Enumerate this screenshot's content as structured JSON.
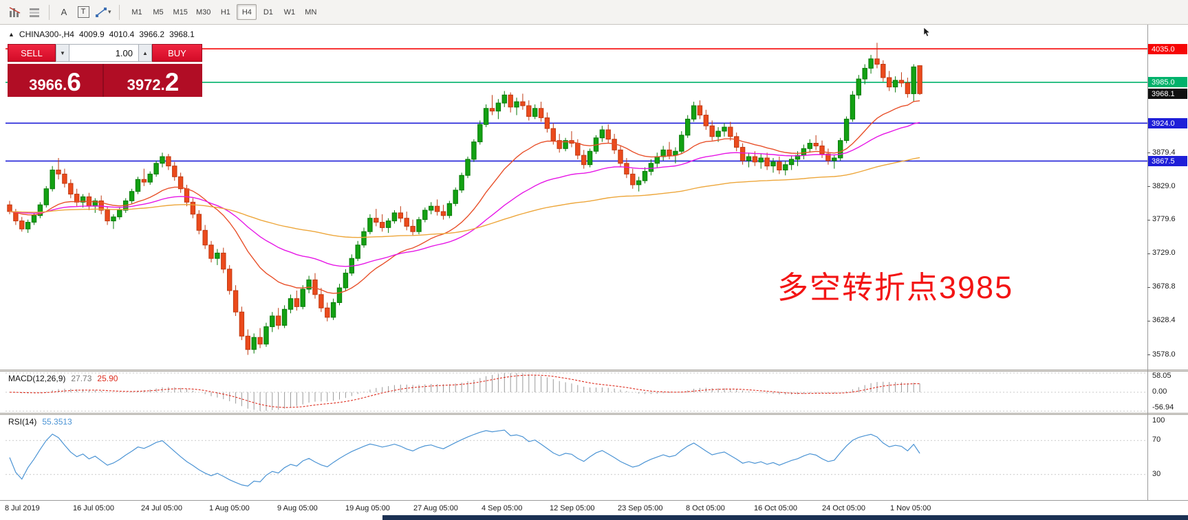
{
  "toolbar": {
    "letter_a": "A",
    "letter_t": "T",
    "timeframes": [
      {
        "label": "M1",
        "active": false
      },
      {
        "label": "M5",
        "active": false
      },
      {
        "label": "M15",
        "active": false
      },
      {
        "label": "M30",
        "active": false
      },
      {
        "label": "H1",
        "active": false
      },
      {
        "label": "H4",
        "active": true
      },
      {
        "label": "D1",
        "active": false
      },
      {
        "label": "W1",
        "active": false
      },
      {
        "label": "MN",
        "active": false
      }
    ]
  },
  "icons": {
    "dropdown": "▾",
    "spin_up": "▲",
    "spin_down": "▼",
    "collapse": "▲"
  },
  "chart_header": {
    "symbol": "CHINA300-,H4",
    "open": "4009.9",
    "high": "4010.4",
    "low": "3966.2",
    "close": "3968.1"
  },
  "trade_panel": {
    "sell_label": "SELL",
    "buy_label": "BUY",
    "volume": "1.00",
    "bid": "3966.6",
    "ask": "3972.2"
  },
  "annotation": {
    "text": "多空转折点3985",
    "color": "#f31414"
  },
  "price_axis": {
    "labels": [
      {
        "text": "3879.4",
        "price": 3879.4
      },
      {
        "text": "3829.0",
        "price": 3829.0
      },
      {
        "text": "3779.6",
        "price": 3779.6
      },
      {
        "text": "3729.0",
        "price": 3729.0
      },
      {
        "text": "3678.8",
        "price": 3678.8
      },
      {
        "text": "3628.4",
        "price": 3628.4
      },
      {
        "text": "3578.0",
        "price": 3578.0
      }
    ],
    "boxes": [
      {
        "text": "4035.0",
        "price": 4035.0,
        "bg": "#f60606",
        "name": "resistance-price-box"
      },
      {
        "text": "3985.0",
        "price": 3985.0,
        "bg": "#00b26b",
        "name": "pivot-price-box"
      },
      {
        "text": "3924.0",
        "price": 3924.0,
        "bg": "#1f1fd8",
        "name": "support1-price-box"
      },
      {
        "text": "3867.5",
        "price": 3867.5,
        "bg": "#1f1fd8",
        "name": "support2-price-box"
      },
      {
        "text": "3968.1",
        "price": 3968.1,
        "bg": "#101010",
        "name": "current-price-box"
      }
    ]
  },
  "macd": {
    "label": "MACD(12,26,9)",
    "value_hist": "27.73",
    "value_signal": "25.90",
    "axis": [
      {
        "text": "58.05",
        "level": 58.05
      },
      {
        "text": "0.00",
        "level": 0
      },
      {
        "text": "-56.94",
        "level": -56.94
      }
    ],
    "level_lines": [
      58.05,
      0,
      -56.94
    ],
    "params": {
      "fast": 12,
      "slow": 26,
      "signal": 9
    }
  },
  "rsi": {
    "label": "RSI(14)",
    "value": "55.3513",
    "period": 14,
    "axis": [
      {
        "text": "100",
        "level": 100
      },
      {
        "text": "70",
        "level": 70
      },
      {
        "text": "30",
        "level": 30
      }
    ],
    "level_lines": [
      70,
      30
    ]
  },
  "dates": [
    "8 Jul 2019",
    "16 Jul 05:00",
    "24 Jul 05:00",
    "1 Aug 05:00",
    "9 Aug 05:00",
    "19 Aug 05:00",
    "27 Aug 05:00",
    "4 Sep 05:00",
    "12 Sep 05:00",
    "23 Sep 05:00",
    "8 Oct 05:00",
    "16 Oct 05:00",
    "24 Oct 05:00",
    "1 Nov 05:00"
  ],
  "colors": {
    "up": "#13a113",
    "up_stroke": "#077a07",
    "down": "#eb4a1c",
    "down_stroke": "#c03a12",
    "macd_hist": "#9a9a9a",
    "macd_signal": "#dd2c1e",
    "rsi_line": "#4a93d4",
    "grid_level": "#c9c9c9"
  },
  "chart_data": {
    "type": "candlestick",
    "symbol": "CHINA300-",
    "timeframe": "H4",
    "price_range": {
      "min": 3556,
      "max": 4071
    },
    "hlines": [
      {
        "price": 4035.0,
        "color": "#f60606"
      },
      {
        "price": 3985.0,
        "color": "#00b26b"
      },
      {
        "price": 3924.0,
        "color": "#1f1fd8"
      },
      {
        "price": 3867.5,
        "color": "#1f1fd8"
      }
    ],
    "ma_lines": [
      {
        "period": 20,
        "color": "#e8502a"
      },
      {
        "period": 45,
        "color": "#e616e6"
      },
      {
        "period": 120,
        "color": "#eda63a"
      }
    ],
    "candles": [
      [
        3802,
        3808,
        3788,
        3792
      ],
      [
        3792,
        3796,
        3772,
        3778
      ],
      [
        3778,
        3784,
        3762,
        3766
      ],
      [
        3766,
        3780,
        3760,
        3776
      ],
      [
        3776,
        3790,
        3772,
        3786
      ],
      [
        3786,
        3806,
        3782,
        3802
      ],
      [
        3802,
        3830,
        3798,
        3826
      ],
      [
        3826,
        3860,
        3822,
        3854
      ],
      [
        3854,
        3872,
        3840,
        3848
      ],
      [
        3848,
        3856,
        3828,
        3834
      ],
      [
        3834,
        3840,
        3812,
        3818
      ],
      [
        3818,
        3826,
        3800,
        3806
      ],
      [
        3806,
        3818,
        3798,
        3814
      ],
      [
        3814,
        3820,
        3794,
        3800
      ],
      [
        3800,
        3812,
        3790,
        3808
      ],
      [
        3808,
        3816,
        3788,
        3794
      ],
      [
        3794,
        3800,
        3772,
        3778
      ],
      [
        3778,
        3788,
        3766,
        3784
      ],
      [
        3784,
        3798,
        3780,
        3794
      ],
      [
        3794,
        3812,
        3790,
        3808
      ],
      [
        3808,
        3826,
        3804,
        3822
      ],
      [
        3822,
        3844,
        3818,
        3840
      ],
      [
        3840,
        3856,
        3830,
        3836
      ],
      [
        3836,
        3852,
        3832,
        3848
      ],
      [
        3848,
        3868,
        3844,
        3864
      ],
      [
        3864,
        3880,
        3858,
        3874
      ],
      [
        3874,
        3878,
        3854,
        3860
      ],
      [
        3860,
        3866,
        3838,
        3844
      ],
      [
        3844,
        3850,
        3820,
        3826
      ],
      [
        3826,
        3832,
        3800,
        3806
      ],
      [
        3806,
        3812,
        3782,
        3788
      ],
      [
        3788,
        3794,
        3758,
        3764
      ],
      [
        3764,
        3772,
        3736,
        3742
      ],
      [
        3742,
        3748,
        3716,
        3722
      ],
      [
        3722,
        3736,
        3712,
        3730
      ],
      [
        3730,
        3738,
        3700,
        3706
      ],
      [
        3706,
        3712,
        3668,
        3674
      ],
      [
        3674,
        3682,
        3636,
        3642
      ],
      [
        3642,
        3650,
        3600,
        3606
      ],
      [
        3606,
        3616,
        3578,
        3586
      ],
      [
        3586,
        3610,
        3580,
        3604
      ],
      [
        3604,
        3618,
        3588,
        3594
      ],
      [
        3594,
        3626,
        3590,
        3620
      ],
      [
        3620,
        3642,
        3612,
        3636
      ],
      [
        3636,
        3648,
        3616,
        3622
      ],
      [
        3622,
        3652,
        3618,
        3646
      ],
      [
        3646,
        3668,
        3640,
        3662
      ],
      [
        3662,
        3674,
        3644,
        3650
      ],
      [
        3650,
        3682,
        3646,
        3676
      ],
      [
        3676,
        3696,
        3670,
        3690
      ],
      [
        3690,
        3700,
        3662,
        3668
      ],
      [
        3668,
        3678,
        3642,
        3648
      ],
      [
        3648,
        3656,
        3628,
        3634
      ],
      [
        3634,
        3662,
        3630,
        3656
      ],
      [
        3656,
        3684,
        3652,
        3678
      ],
      [
        3678,
        3706,
        3674,
        3700
      ],
      [
        3700,
        3728,
        3696,
        3722
      ],
      [
        3722,
        3748,
        3718,
        3742
      ],
      [
        3742,
        3768,
        3738,
        3762
      ],
      [
        3762,
        3788,
        3758,
        3782
      ],
      [
        3782,
        3796,
        3770,
        3776
      ],
      [
        3776,
        3788,
        3762,
        3768
      ],
      [
        3768,
        3782,
        3760,
        3778
      ],
      [
        3778,
        3794,
        3774,
        3790
      ],
      [
        3790,
        3800,
        3776,
        3782
      ],
      [
        3782,
        3792,
        3764,
        3770
      ],
      [
        3770,
        3780,
        3756,
        3762
      ],
      [
        3762,
        3784,
        3758,
        3780
      ],
      [
        3780,
        3798,
        3776,
        3794
      ],
      [
        3794,
        3806,
        3788,
        3800
      ],
      [
        3800,
        3810,
        3786,
        3792
      ],
      [
        3792,
        3802,
        3780,
        3786
      ],
      [
        3786,
        3808,
        3782,
        3804
      ],
      [
        3804,
        3828,
        3800,
        3824
      ],
      [
        3824,
        3850,
        3820,
        3846
      ],
      [
        3846,
        3874,
        3842,
        3870
      ],
      [
        3870,
        3900,
        3866,
        3896
      ],
      [
        3896,
        3928,
        3892,
        3922
      ],
      [
        3922,
        3952,
        3918,
        3946
      ],
      [
        3946,
        3966,
        3936,
        3942
      ],
      [
        3942,
        3960,
        3930,
        3954
      ],
      [
        3954,
        3972,
        3948,
        3966
      ],
      [
        3966,
        3970,
        3940,
        3948
      ],
      [
        3948,
        3962,
        3936,
        3956
      ],
      [
        3956,
        3968,
        3944,
        3950
      ],
      [
        3950,
        3958,
        3928,
        3934
      ],
      [
        3934,
        3952,
        3930,
        3946
      ],
      [
        3946,
        3956,
        3926,
        3932
      ],
      [
        3932,
        3940,
        3910,
        3916
      ],
      [
        3916,
        3924,
        3892,
        3898
      ],
      [
        3898,
        3908,
        3880,
        3886
      ],
      [
        3886,
        3902,
        3882,
        3898
      ],
      [
        3898,
        3912,
        3888,
        3894
      ],
      [
        3894,
        3900,
        3870,
        3876
      ],
      [
        3876,
        3884,
        3856,
        3862
      ],
      [
        3862,
        3886,
        3858,
        3882
      ],
      [
        3882,
        3906,
        3878,
        3902
      ],
      [
        3902,
        3920,
        3896,
        3914
      ],
      [
        3914,
        3922,
        3894,
        3900
      ],
      [
        3900,
        3908,
        3878,
        3884
      ],
      [
        3884,
        3890,
        3858,
        3864
      ],
      [
        3864,
        3872,
        3842,
        3848
      ],
      [
        3848,
        3856,
        3826,
        3832
      ],
      [
        3832,
        3844,
        3822,
        3838
      ],
      [
        3838,
        3858,
        3834,
        3852
      ],
      [
        3852,
        3870,
        3846,
        3864
      ],
      [
        3864,
        3880,
        3858,
        3874
      ],
      [
        3874,
        3890,
        3868,
        3884
      ],
      [
        3884,
        3896,
        3870,
        3876
      ],
      [
        3876,
        3888,
        3864,
        3882
      ],
      [
        3882,
        3912,
        3878,
        3906
      ],
      [
        3906,
        3936,
        3902,
        3930
      ],
      [
        3930,
        3956,
        3926,
        3950
      ],
      [
        3950,
        3958,
        3930,
        3936
      ],
      [
        3936,
        3944,
        3914,
        3920
      ],
      [
        3920,
        3928,
        3898,
        3904
      ],
      [
        3904,
        3918,
        3896,
        3912
      ],
      [
        3912,
        3924,
        3904,
        3918
      ],
      [
        3918,
        3926,
        3898,
        3904
      ],
      [
        3904,
        3910,
        3882,
        3888
      ],
      [
        3888,
        3894,
        3862,
        3868
      ],
      [
        3868,
        3880,
        3858,
        3874
      ],
      [
        3874,
        3882,
        3860,
        3866
      ],
      [
        3866,
        3878,
        3856,
        3872
      ],
      [
        3872,
        3880,
        3854,
        3860
      ],
      [
        3860,
        3872,
        3850,
        3866
      ],
      [
        3866,
        3874,
        3848,
        3854
      ],
      [
        3854,
        3868,
        3846,
        3862
      ],
      [
        3862,
        3876,
        3854,
        3870
      ],
      [
        3870,
        3882,
        3860,
        3876
      ],
      [
        3876,
        3892,
        3870,
        3886
      ],
      [
        3886,
        3900,
        3880,
        3894
      ],
      [
        3894,
        3906,
        3884,
        3890
      ],
      [
        3890,
        3898,
        3872,
        3878
      ],
      [
        3878,
        3886,
        3862,
        3868
      ],
      [
        3868,
        3876,
        3856,
        3872
      ],
      [
        3872,
        3902,
        3868,
        3898
      ],
      [
        3898,
        3934,
        3894,
        3930
      ],
      [
        3930,
        3972,
        3926,
        3966
      ],
      [
        3966,
        3996,
        3960,
        3990
      ],
      [
        3990,
        4012,
        3982,
        4006
      ],
      [
        4006,
        4026,
        3998,
        4020
      ],
      [
        4020,
        4044,
        4006,
        4012
      ],
      [
        4012,
        4018,
        3986,
        3992
      ],
      [
        3992,
        4002,
        3972,
        3978
      ],
      [
        3978,
        3994,
        3970,
        3988
      ],
      [
        3988,
        4000,
        3978,
        3984
      ],
      [
        3984,
        3992,
        3962,
        3968
      ],
      [
        3968,
        4012,
        3956,
        4008
      ],
      [
        4009.9,
        4010.4,
        3966.2,
        3968.1
      ]
    ]
  }
}
